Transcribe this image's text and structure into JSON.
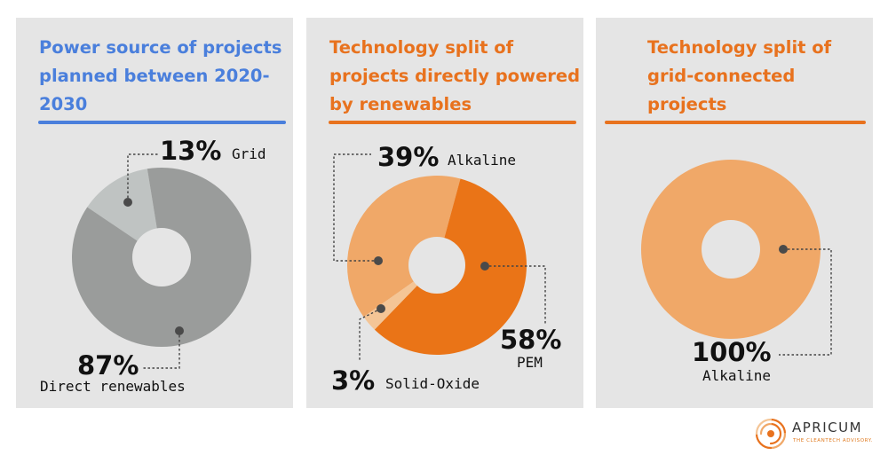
{
  "colors": {
    "panel_bg": "#e5e5e5",
    "blue_title": "#4a7fdc",
    "orange_title": "#e8721e",
    "grey_dark": "#9a9c9b",
    "grey_light": "#bfc3c2",
    "orange_dark": "#ea7417",
    "orange_light": "#f0a868",
    "orange_pale": "#f4c596"
  },
  "chart_data": [
    {
      "type": "pie",
      "title": "Power source of projects planned between 2020-2030",
      "series": [
        {
          "label": "Grid",
          "value": 13,
          "display": "13%"
        },
        {
          "label": "Direct renewables",
          "value": 87,
          "display": "87%"
        }
      ]
    },
    {
      "type": "pie",
      "title": "Technology split of projects directly powered by renewables",
      "series": [
        {
          "label": "Alkaline",
          "value": 39,
          "display": "39%"
        },
        {
          "label": "PEM",
          "value": 58,
          "display": "58%"
        },
        {
          "label": "Solid-Oxide",
          "value": 3,
          "display": "3%"
        }
      ]
    },
    {
      "type": "pie",
      "title": "Technology split of grid-connected projects",
      "series": [
        {
          "label": "Alkaline",
          "value": 100,
          "display": "100%"
        }
      ]
    }
  ],
  "logo": {
    "name": "APRICUM",
    "tagline": "THE CLEANTECH ADVISORY."
  }
}
